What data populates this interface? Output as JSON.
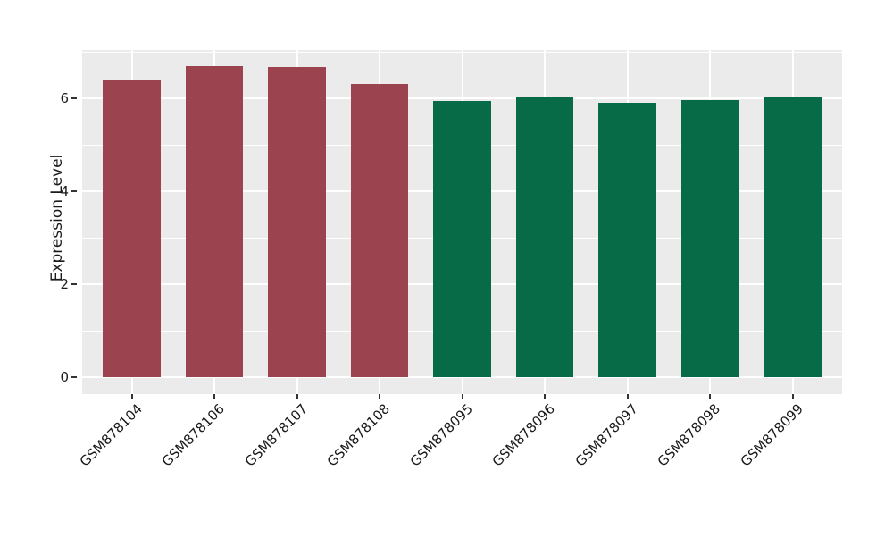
{
  "figure": {
    "background_color": "#FFFFFF",
    "panel_background_color": "#EBEBEB",
    "gridline_color": "#FFFFFF",
    "axis_tick_color": "#333333",
    "axis_text_color": "#1A1A1A"
  },
  "chart_data": {
    "type": "bar",
    "title": "",
    "xlabel": "",
    "ylabel": "Expression Level",
    "categories": [
      "GSM878104",
      "GSM878106",
      "GSM878107",
      "GSM878108",
      "GSM878095",
      "GSM878096",
      "GSM878097",
      "GSM878098",
      "GSM878099"
    ],
    "values": [
      6.4,
      6.7,
      6.68,
      6.3,
      5.95,
      6.01,
      5.91,
      5.97,
      6.03
    ],
    "bar_groups": [
      "group-1",
      "group-1",
      "group-1",
      "group-1",
      "group-2",
      "group-2",
      "group-2",
      "group-2",
      "group-2"
    ],
    "group_colors": {
      "group-1": "#9B4450",
      "group-2": "#076B48"
    },
    "bar_width_ratio": 0.7,
    "ylim": [
      -0.37,
      7.03
    ],
    "yticks": [
      0,
      2,
      4,
      6
    ],
    "yticks_minor": [
      1,
      3,
      5,
      7
    ],
    "grid": {
      "horizontal_major": true,
      "horizontal_minor": true,
      "vertical_major_at_categories": true
    },
    "legend_position": "none",
    "x_tick_label_angle_deg": 45
  }
}
